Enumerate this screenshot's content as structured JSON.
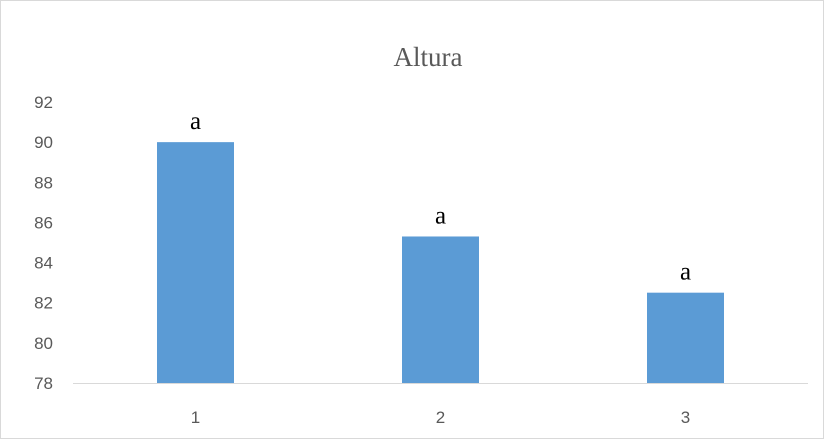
{
  "chart_data": {
    "type": "bar",
    "title": "Altura",
    "xlabel": "",
    "ylabel": "",
    "categories": [
      "1",
      "2",
      "3"
    ],
    "values": [
      90,
      85.3,
      82.5
    ],
    "data_labels": [
      "a",
      "a",
      "a"
    ],
    "ylim": [
      78,
      92
    ],
    "yticks": [
      "78",
      "80",
      "82",
      "84",
      "86",
      "88",
      "90",
      "92"
    ],
    "bar_color": "#5b9bd5",
    "grid": false,
    "legend": "none"
  }
}
